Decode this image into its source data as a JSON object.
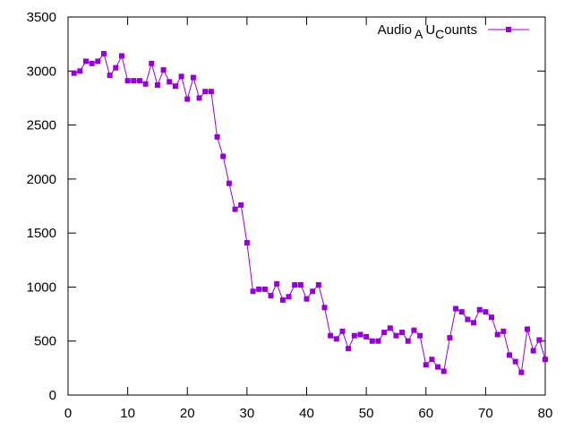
{
  "chart_data": {
    "type": "line",
    "title": "",
    "xlabel": "",
    "ylabel": "",
    "xlim": [
      0,
      80
    ],
    "ylim": [
      0,
      3500
    ],
    "x_ticks": [
      0,
      10,
      20,
      30,
      40,
      50,
      60,
      70,
      80
    ],
    "y_ticks": [
      0,
      500,
      1000,
      1500,
      2000,
      2500,
      3000,
      3500
    ],
    "grid": false,
    "legend_position": "top-right",
    "series": [
      {
        "name": "Audio_AU_Counts",
        "legend": {
          "main1": "Audio",
          "sub1": "A",
          "main2": "U",
          "sub2": "C",
          "main3": "ounts"
        },
        "color": "#9400d3",
        "marker": "filled-box",
        "x": [
          1,
          2,
          3,
          4,
          5,
          6,
          7,
          8,
          9,
          10,
          11,
          12,
          13,
          14,
          15,
          16,
          17,
          18,
          19,
          20,
          21,
          22,
          23,
          24,
          25,
          26,
          27,
          28,
          29,
          30,
          31,
          32,
          33,
          34,
          35,
          36,
          37,
          38,
          39,
          40,
          41,
          42,
          43,
          44,
          45,
          46,
          47,
          48,
          49,
          50,
          51,
          52,
          53,
          54,
          55,
          56,
          57,
          58,
          59,
          60,
          61,
          62,
          63,
          64,
          65,
          66,
          67,
          68,
          69,
          70,
          71,
          72,
          73,
          74,
          75,
          76,
          77,
          78,
          79,
          80
        ],
        "values": [
          2980,
          3000,
          3090,
          3070,
          3090,
          3160,
          2960,
          3030,
          3140,
          2910,
          2910,
          2910,
          2880,
          3070,
          2870,
          3010,
          2900,
          2860,
          2950,
          2740,
          2940,
          2750,
          2810,
          2810,
          2390,
          2210,
          1960,
          1720,
          1760,
          1410,
          960,
          980,
          980,
          920,
          1030,
          880,
          910,
          1020,
          1020,
          890,
          960,
          1020,
          810,
          550,
          520,
          590,
          430,
          550,
          560,
          540,
          500,
          500,
          580,
          620,
          550,
          580,
          500,
          600,
          550,
          280,
          330,
          260,
          220,
          530,
          800,
          770,
          700,
          670,
          790,
          770,
          720,
          560,
          590,
          370,
          310,
          210,
          610,
          410,
          510,
          330
        ]
      }
    ]
  }
}
